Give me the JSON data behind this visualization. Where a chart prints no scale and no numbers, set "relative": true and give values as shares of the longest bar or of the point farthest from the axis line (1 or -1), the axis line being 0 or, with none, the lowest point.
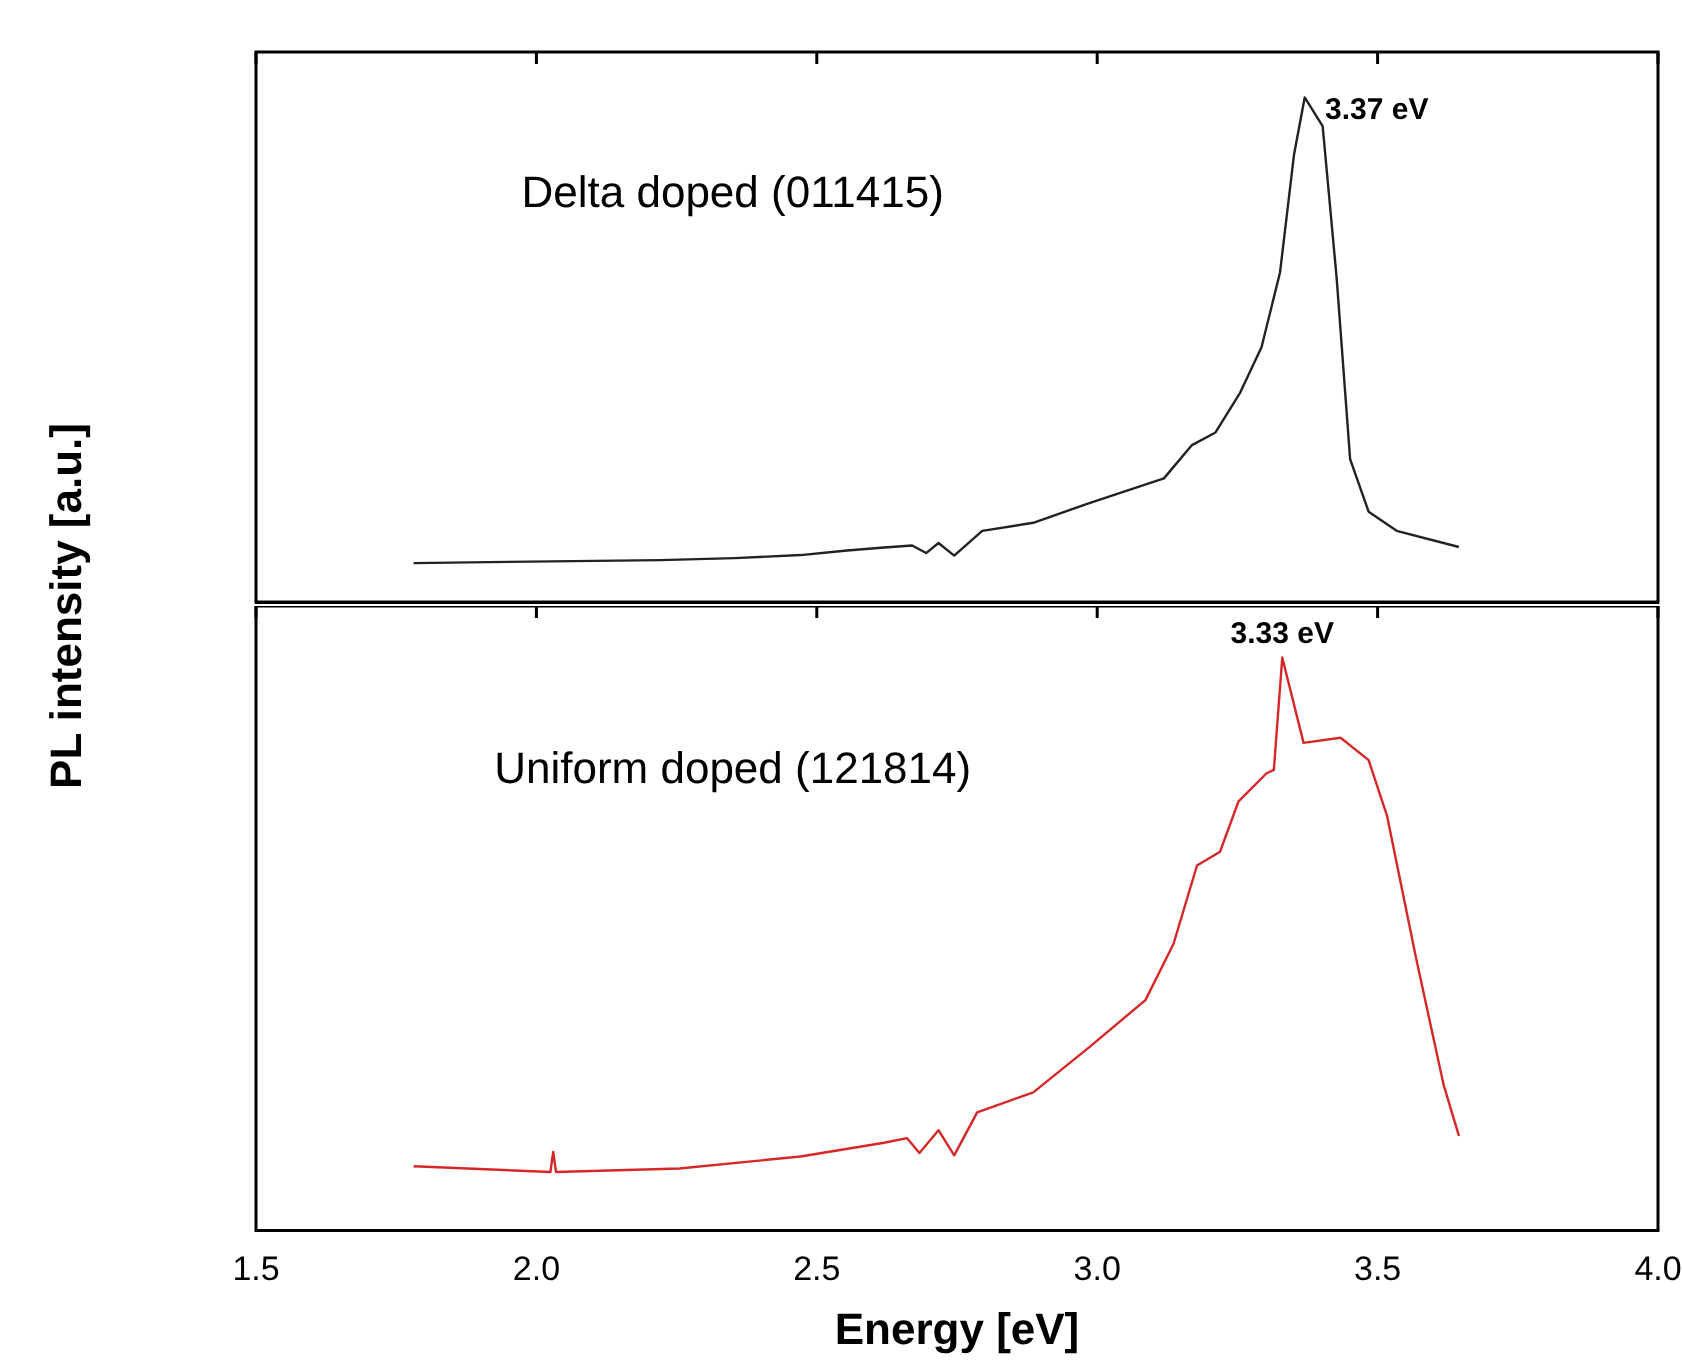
{
  "chart_data": [
    {
      "type": "line",
      "relative": true,
      "ylabel": "PL intensity [a.u.]",
      "xlim": [
        1.5,
        4.0
      ],
      "xticks": [
        {
          "value": 1.5,
          "label": null
        },
        {
          "value": 2,
          "label": null
        },
        {
          "value": 2.5,
          "label": null
        },
        {
          "value": 3,
          "label": null
        },
        {
          "value": 3.5,
          "label": null
        },
        {
          "value": 4,
          "label": null
        }
      ],
      "tick_labels": false,
      "legend": false,
      "grid": false,
      "marker": "none",
      "line_style": "solid",
      "annotations": [
        {
          "text": "3.37 eV",
          "x": 3.37,
          "y": 1
        }
      ],
      "series": [
        {
          "name": "Delta doped (011415)",
          "color": "#222222",
          "x": [
            1.781,
            1.914,
            2.221,
            2.354,
            2.471,
            2.554,
            2.62,
            2.67,
            2.695,
            2.717,
            2.745,
            2.795,
            2.886,
            2.986,
            3.119,
            3.169,
            3.211,
            3.255,
            3.293,
            3.326,
            3.351,
            3.37,
            3.402,
            3.427,
            3.451,
            3.484,
            3.534,
            3.645
          ],
          "values": [
            0.077,
            0.079,
            0.083,
            0.087,
            0.093,
            0.102,
            0.108,
            0.112,
            0.097,
            0.117,
            0.092,
            0.141,
            0.157,
            0.196,
            0.245,
            0.311,
            0.336,
            0.415,
            0.505,
            0.653,
            0.887,
            1,
            0.943,
            0.642,
            0.283,
            0.179,
            0.141,
            0.109
          ]
        }
      ]
    },
    {
      "type": "line",
      "relative": true,
      "xlabel": "Energy [eV]",
      "xlim": [
        1.5,
        4.0
      ],
      "xticks": [
        1.5,
        {
          "value": 2,
          "label": "2.0"
        },
        2.5,
        {
          "value": 3,
          "label": "3.0"
        },
        3.5,
        {
          "value": 4,
          "label": "4.0"
        }
      ],
      "legend": false,
      "grid": false,
      "marker": "none",
      "line_style": "solid",
      "annotations": [
        {
          "text": "3.33 eV",
          "x": 3.33,
          "y": 1
        }
      ],
      "series": [
        {
          "name": "Uniform doped (121814)",
          "color": "#d62728",
          "x": [
            1.781,
            2.025,
            2.03,
            2.035,
            2.255,
            2.471,
            2.62,
            2.661,
            2.683,
            2.717,
            2.745,
            2.786,
            2.886,
            2.986,
            3.086,
            3.136,
            3.178,
            3.219,
            3.252,
            3.302,
            3.315,
            3.33,
            3.368,
            3.434,
            3.484,
            3.517,
            3.568,
            3.618,
            3.645
          ],
          "values": [
            0.112,
            0.102,
            0.137,
            0.102,
            0.108,
            0.129,
            0.153,
            0.161,
            0.135,
            0.175,
            0.131,
            0.206,
            0.241,
            0.32,
            0.402,
            0.5,
            0.637,
            0.661,
            0.749,
            0.798,
            0.804,
            1,
            0.851,
            0.86,
            0.821,
            0.723,
            0.478,
            0.253,
            0.165
          ]
        }
      ]
    }
  ]
}
